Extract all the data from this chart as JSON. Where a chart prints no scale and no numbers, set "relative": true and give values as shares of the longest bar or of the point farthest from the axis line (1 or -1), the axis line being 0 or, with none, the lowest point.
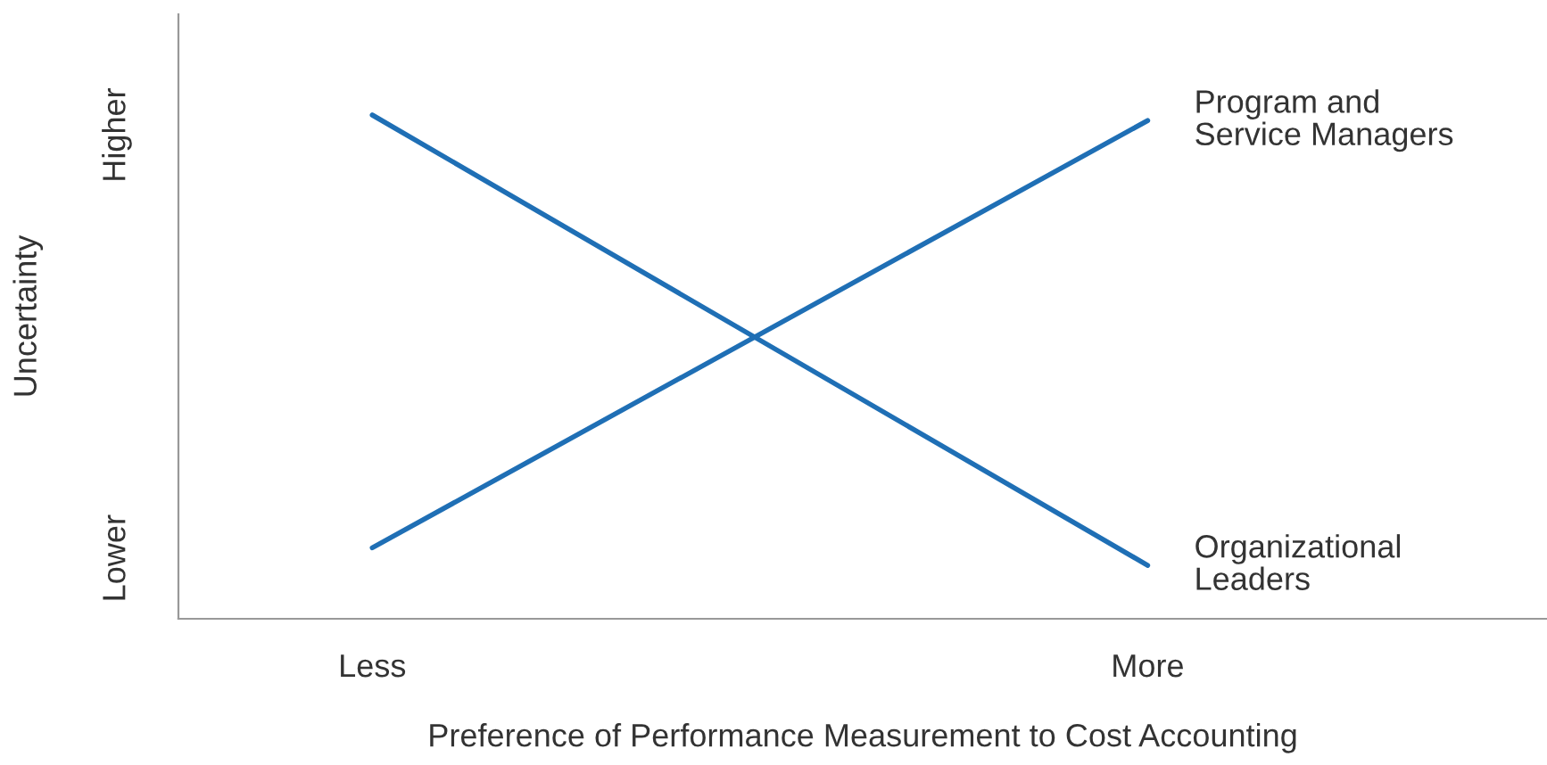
{
  "chart_data": {
    "type": "line",
    "xlabel": "Preference of Performance Measurement to Cost Accounting",
    "ylabel": "Uncertainty",
    "categories": [
      "Less",
      "More"
    ],
    "relative": true,
    "annotations": [
      "Higher",
      "Lower"
    ],
    "grid": false,
    "legend": false,
    "marker": "none",
    "line_style": "solid",
    "series": [
      {
        "name": "Organizational\nLeaders",
        "color": "#1f6fb5",
        "values": [
          1.0,
          0.106
        ]
      },
      {
        "name": "Program and\nService Managers",
        "color": "#1f6fb5",
        "values": [
          0.141,
          0.989
        ]
      }
    ]
  }
}
